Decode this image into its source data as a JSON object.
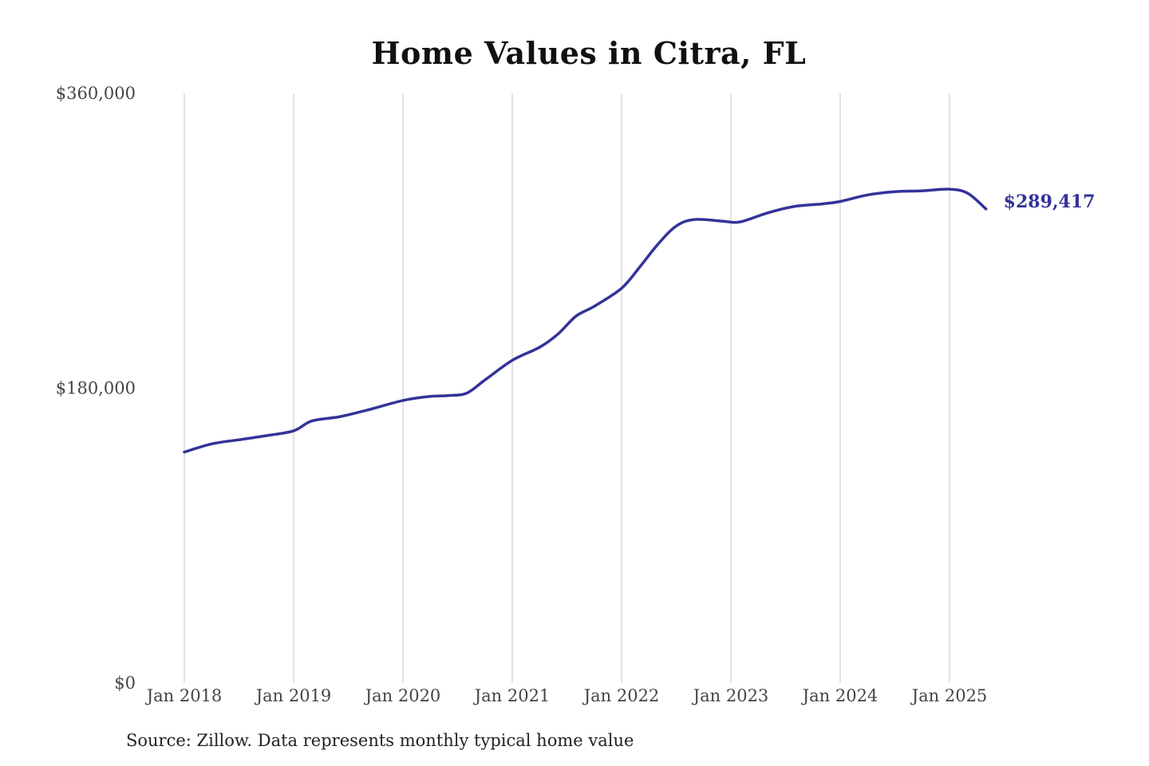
{
  "chart_data": {
    "type": "line",
    "title": "Home Values in Citra, FL",
    "xlabel": "",
    "ylabel": "",
    "source": "Source: Zillow. Data represents monthly typical home value",
    "ylim": [
      0,
      360000
    ],
    "y_ticks": [
      {
        "value": 0,
        "label": "$0"
      },
      {
        "value": 180000,
        "label": "$180,000"
      },
      {
        "value": 360000,
        "label": "$360,000"
      }
    ],
    "x_ticks": [
      {
        "date": "2018-01",
        "label": "Jan 2018"
      },
      {
        "date": "2019-01",
        "label": "Jan 2019"
      },
      {
        "date": "2020-01",
        "label": "Jan 2020"
      },
      {
        "date": "2021-01",
        "label": "Jan 2021"
      },
      {
        "date": "2022-01",
        "label": "Jan 2022"
      },
      {
        "date": "2023-01",
        "label": "Jan 2023"
      },
      {
        "date": "2024-01",
        "label": "Jan 2024"
      },
      {
        "date": "2025-01",
        "label": "Jan 2025"
      }
    ],
    "grid": "vertical",
    "line_color": "#33339a",
    "end_label": "$289,417",
    "series": [
      {
        "x": [
          "2018-01",
          "2018-04",
          "2018-07",
          "2018-10",
          "2019-01",
          "2019-03",
          "2019-06",
          "2019-09",
          "2020-01",
          "2020-04",
          "2020-06",
          "2020-08",
          "2020-10",
          "2021-01",
          "2021-04",
          "2021-06",
          "2021-08",
          "2021-10",
          "2022-01",
          "2022-03",
          "2022-05",
          "2022-07",
          "2022-09",
          "2022-12",
          "2023-02",
          "2023-05",
          "2023-08",
          "2023-11",
          "2024-01",
          "2024-04",
          "2024-07",
          "2024-10",
          "2025-01",
          "2025-03",
          "2025-05"
        ],
        "y": [
          141000,
          146000,
          148500,
          151000,
          154000,
          160000,
          162500,
          166500,
          172500,
          175000,
          175500,
          177000,
          185000,
          197000,
          205000,
          213000,
          224000,
          230000,
          241000,
          254000,
          268000,
          279000,
          283000,
          282000,
          281500,
          287000,
          291000,
          292500,
          294000,
          298000,
          300000,
          300500,
          301500,
          299000,
          289417
        ]
      }
    ]
  }
}
